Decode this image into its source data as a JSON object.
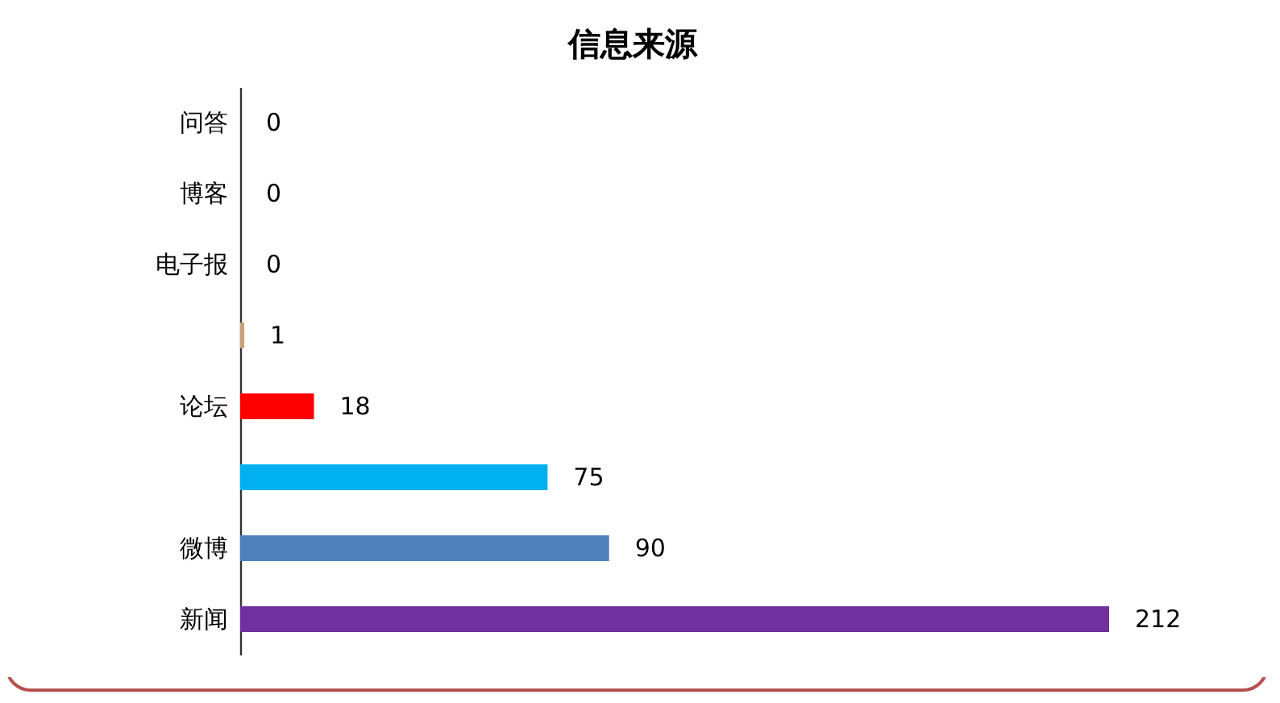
{
  "chart_data": {
    "type": "bar",
    "orientation": "horizontal",
    "title": "信息来源",
    "categories": [
      "问答",
      "博客",
      "电子报",
      null,
      "论坛",
      null,
      "微博",
      "新闻"
    ],
    "values": [
      0,
      0,
      0,
      1,
      18,
      75,
      90,
      212
    ],
    "colors": [
      "#4472c4",
      "#4472c4",
      "#4472c4",
      "#c8a27a",
      "#ff0000",
      "#00b0f0",
      "#4f81bd",
      "#7030a0"
    ],
    "data_labels": true
  }
}
